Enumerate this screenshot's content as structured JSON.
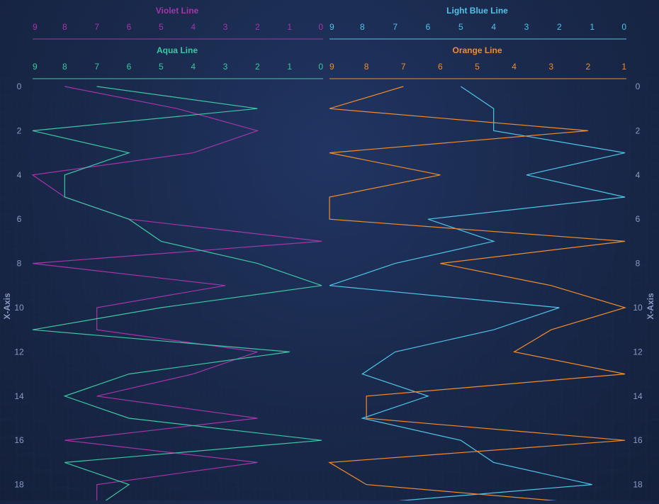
{
  "chart_data": {
    "type": "line",
    "orientation": "vertical",
    "x_axis": {
      "title": "X-Axis",
      "ticks": [
        0,
        2,
        4,
        6,
        8,
        10,
        12,
        14,
        16,
        18
      ],
      "range": [
        0,
        19
      ]
    },
    "panels": [
      {
        "name": "left",
        "series": [
          {
            "name": "Violet Line",
            "color": "#a535a8",
            "axis_position": "top-outer",
            "axis_ticks": [
              9,
              8,
              7,
              6,
              5,
              4,
              3,
              2,
              1,
              0
            ],
            "axis_reversed": true,
            "axis_range": [
              0,
              9
            ],
            "x": [
              0,
              1,
              2,
              3,
              4,
              5,
              6,
              7,
              8,
              9,
              10,
              11,
              12,
              13,
              14,
              15,
              16,
              17,
              18,
              19
            ],
            "values": [
              8,
              4.5,
              2,
              4,
              9,
              8,
              6,
              0,
              9,
              3,
              7,
              7,
              2,
              4,
              7,
              2,
              8,
              2,
              7,
              7
            ]
          },
          {
            "name": "Aqua Line",
            "color": "#3bc8a3",
            "axis_position": "top-inner",
            "axis_ticks": [
              9,
              8,
              7,
              6,
              5,
              4,
              3,
              2,
              1,
              0
            ],
            "axis_reversed": true,
            "axis_range": [
              0,
              9
            ],
            "x": [
              0,
              1,
              2,
              3,
              4,
              5,
              6,
              7,
              8,
              9,
              10,
              11,
              12,
              13,
              14,
              15,
              16,
              17,
              18,
              19
            ],
            "values": [
              7,
              2,
              9,
              6,
              8,
              8,
              6,
              5,
              2,
              0,
              5,
              9,
              1,
              6,
              8,
              6,
              0,
              8,
              6,
              7
            ]
          }
        ]
      },
      {
        "name": "right",
        "series": [
          {
            "name": "Light Blue Line",
            "color": "#4fc4e8",
            "axis_position": "top-outer",
            "axis_ticks": [
              9,
              8,
              7,
              6,
              5,
              4,
              3,
              2,
              1,
              0
            ],
            "axis_reversed": true,
            "axis_range": [
              0,
              9
            ],
            "x": [
              0,
              1,
              2,
              3,
              4,
              5,
              6,
              7,
              8,
              9,
              10,
              11,
              12,
              13,
              14,
              15,
              16,
              17,
              18,
              19
            ],
            "values": [
              5,
              4,
              4,
              0,
              3,
              0,
              6,
              4,
              7,
              9,
              2,
              4,
              7,
              8,
              6,
              8,
              5,
              4,
              1,
              9
            ]
          },
          {
            "name": "Orange Line",
            "color": "#f28c28",
            "axis_position": "top-inner",
            "axis_ticks": [
              9,
              8,
              7,
              6,
              5,
              4,
              3,
              2,
              1
            ],
            "axis_reversed": true,
            "axis_range": [
              1,
              9
            ],
            "x": [
              0,
              1,
              2,
              3,
              4,
              5,
              6,
              7,
              8,
              9,
              10,
              11,
              12,
              13,
              14,
              15,
              16,
              17,
              18,
              19
            ],
            "values": [
              7,
              9,
              2,
              9,
              6,
              9,
              9,
              1,
              6,
              3,
              1,
              3,
              4,
              1,
              8,
              8,
              1,
              9,
              8,
              1
            ]
          }
        ]
      }
    ],
    "grid": true,
    "legend": "none"
  }
}
